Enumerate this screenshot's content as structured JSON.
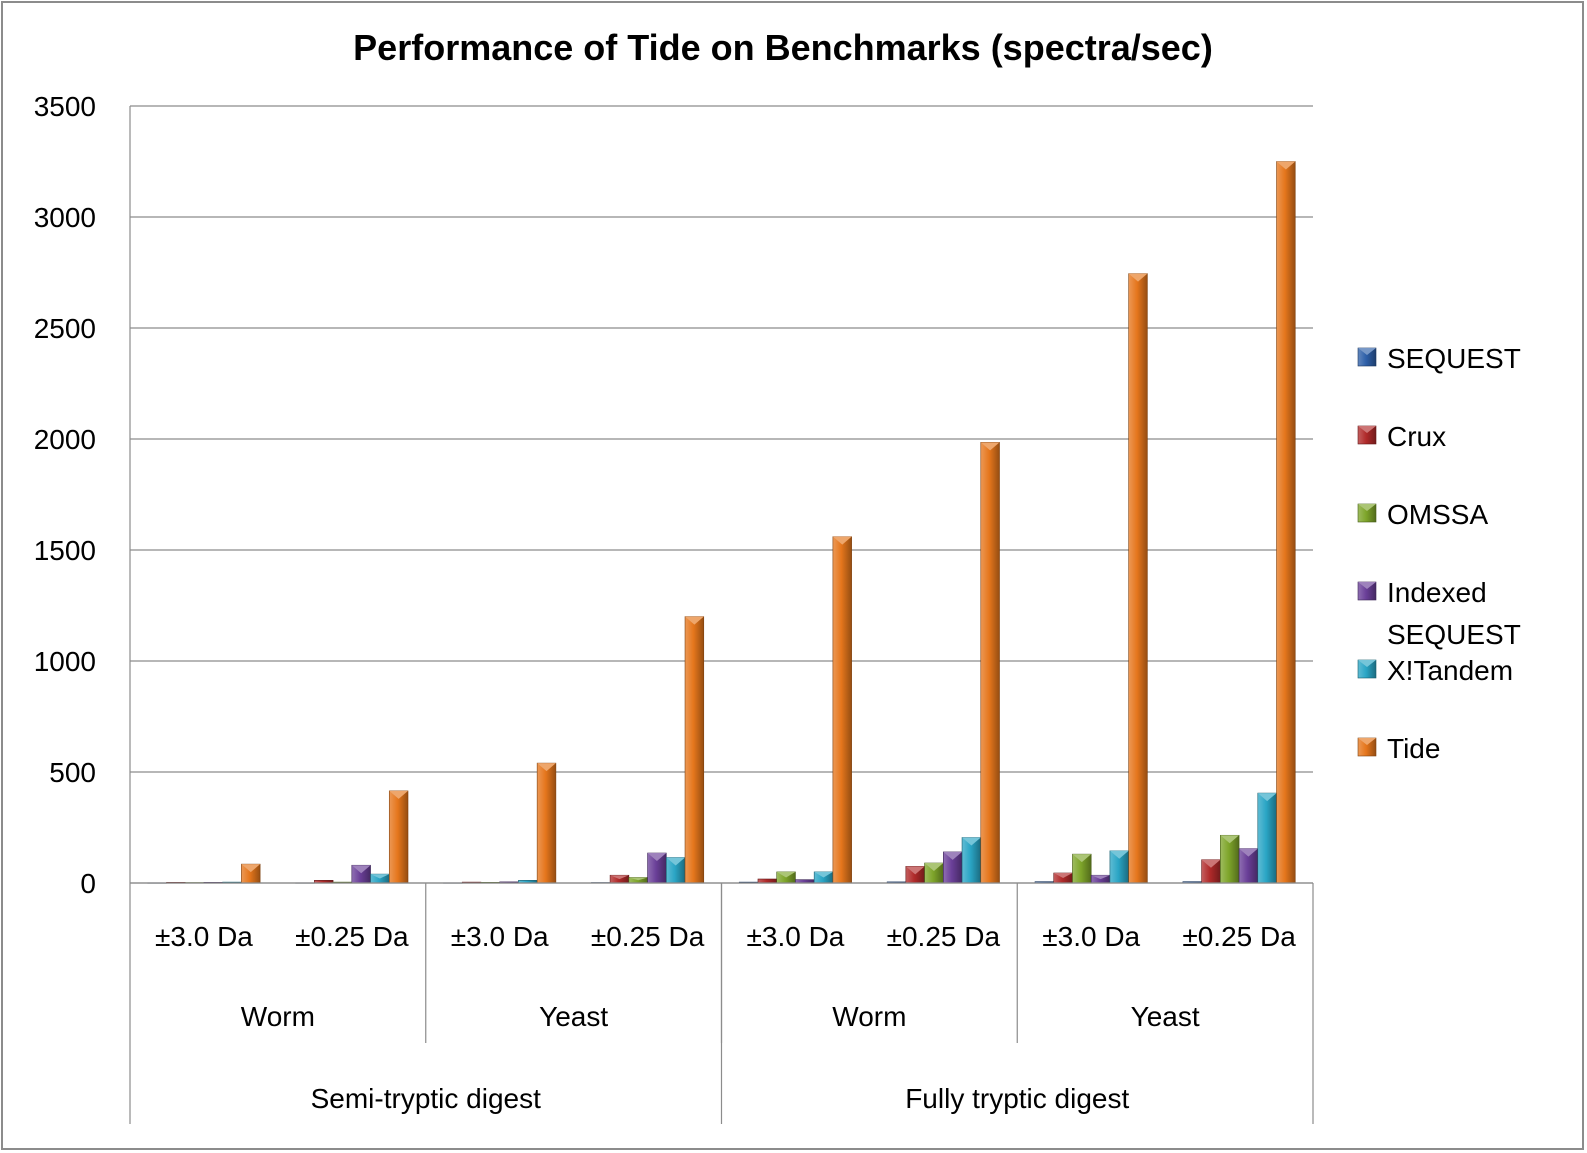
{
  "chart_data": {
    "type": "bar",
    "title": "Performance of Tide on Benchmarks (spectra/sec)",
    "xlabel": "",
    "ylabel": "",
    "ylim": [
      0,
      3500
    ],
    "yticks": [
      0,
      500,
      1000,
      1500,
      2000,
      2500,
      3000,
      3500
    ],
    "grid": true,
    "legend_position": "right",
    "categories": [
      "±3.0 Da",
      "±0.25 Da",
      "±3.0 Da",
      "±0.25 Da",
      "±3.0 Da",
      "±0.25 Da",
      "±3.0 Da",
      "±0.25 Da"
    ],
    "category_groups_level2": [
      {
        "label": "Worm",
        "span": 2
      },
      {
        "label": "Yeast",
        "span": 2
      },
      {
        "label": "Worm",
        "span": 2
      },
      {
        "label": "Yeast",
        "span": 2
      }
    ],
    "category_groups_level3": [
      {
        "label": "Semi-tryptic digest",
        "span": 4
      },
      {
        "label": "Fully tryptic digest",
        "span": 4
      }
    ],
    "series": [
      {
        "name": "SEQUEST",
        "color": "#2e5fa8",
        "values": [
          1,
          1,
          1,
          2,
          4,
          5,
          6,
          6
        ]
      },
      {
        "name": "Crux",
        "color": "#b02a2a",
        "values": [
          3,
          12,
          4,
          35,
          18,
          75,
          45,
          105
        ]
      },
      {
        "name": "OMSSA",
        "color": "#7ea52a",
        "values": [
          2,
          4,
          3,
          25,
          50,
          90,
          130,
          215
        ]
      },
      {
        "name": "Indexed SEQUEST",
        "color": "#6a3f98",
        "values": [
          3,
          80,
          5,
          135,
          15,
          140,
          35,
          155
        ]
      },
      {
        "name": "X!Tandem",
        "color": "#2aa5c5",
        "values": [
          4,
          40,
          12,
          115,
          50,
          205,
          145,
          405
        ]
      },
      {
        "name": "Tide",
        "color": "#e5761c",
        "values": [
          85,
          415,
          540,
          1200,
          1560,
          1985,
          2745,
          3250
        ]
      }
    ]
  }
}
